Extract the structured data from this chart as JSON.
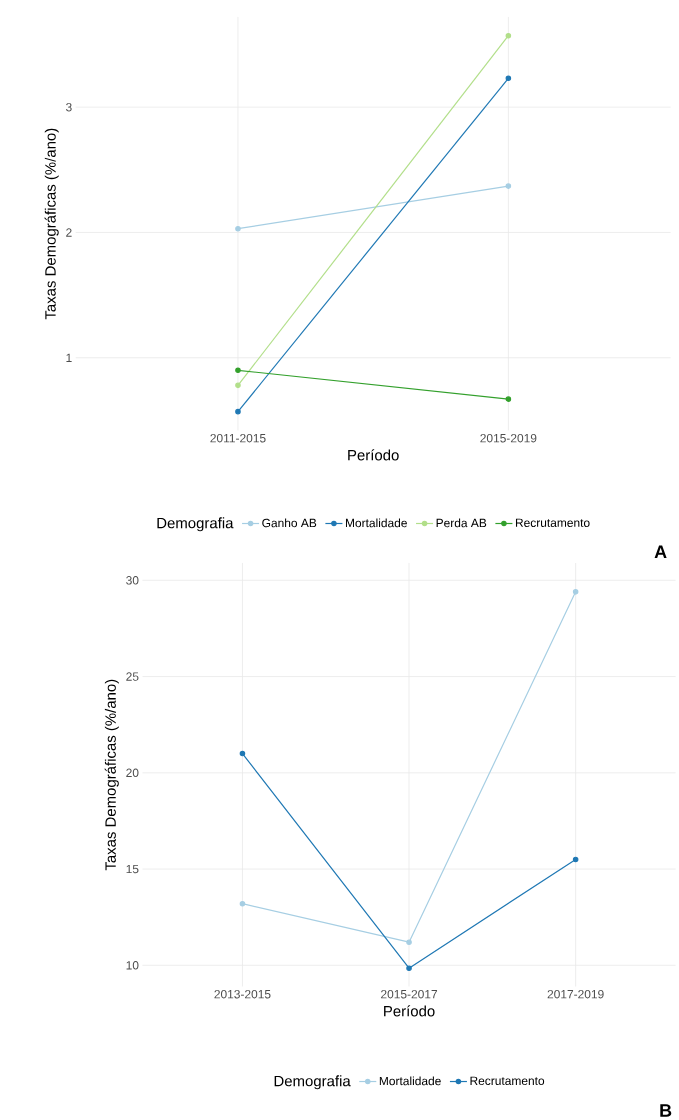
{
  "chart_data": [
    {
      "type": "line",
      "xlabel": "Período",
      "ylabel": "Taxas Demográficas (%/ano)",
      "legend_title": "Demografia",
      "legend": "bottom",
      "grid": true,
      "marker": "circle",
      "line_style": "solid",
      "categories": [
        "2011-2015",
        "2015-2019"
      ],
      "ylim": [
        0.42,
        3.72
      ],
      "yticks": [
        1,
        2,
        3
      ],
      "series": [
        {
          "name": "Ganho AB",
          "color": "#a6cee3",
          "values": [
            2.03,
            2.37
          ]
        },
        {
          "name": "Mortalidade",
          "color": "#1f78b4",
          "values": [
            0.57,
            3.23
          ]
        },
        {
          "name": "Perda AB",
          "color": "#b2df8a",
          "values": [
            0.78,
            3.57
          ]
        },
        {
          "name": "Recrutamento",
          "color": "#33a02c",
          "values": [
            0.9,
            0.67
          ]
        }
      ],
      "annotations": [
        "A"
      ]
    },
    {
      "type": "line",
      "xlabel": "Período",
      "ylabel": "Taxas Demográficas (%/ano)",
      "legend_title": "Demografia",
      "legend": "bottom",
      "grid": true,
      "marker": "circle",
      "line_style": "solid",
      "categories": [
        "2013-2015",
        "2015-2017",
        "2017-2019"
      ],
      "ylim": [
        8.9,
        30.9
      ],
      "yticks": [
        10,
        15,
        20,
        25,
        30
      ],
      "series": [
        {
          "name": "Mortalidade",
          "color": "#a6cee3",
          "values": [
            13.2,
            11.2,
            29.4
          ]
        },
        {
          "name": "Recrutamento",
          "color": "#1f78b4",
          "values": [
            21.0,
            9.85,
            15.5
          ]
        }
      ],
      "annotations": [
        "B"
      ]
    }
  ]
}
